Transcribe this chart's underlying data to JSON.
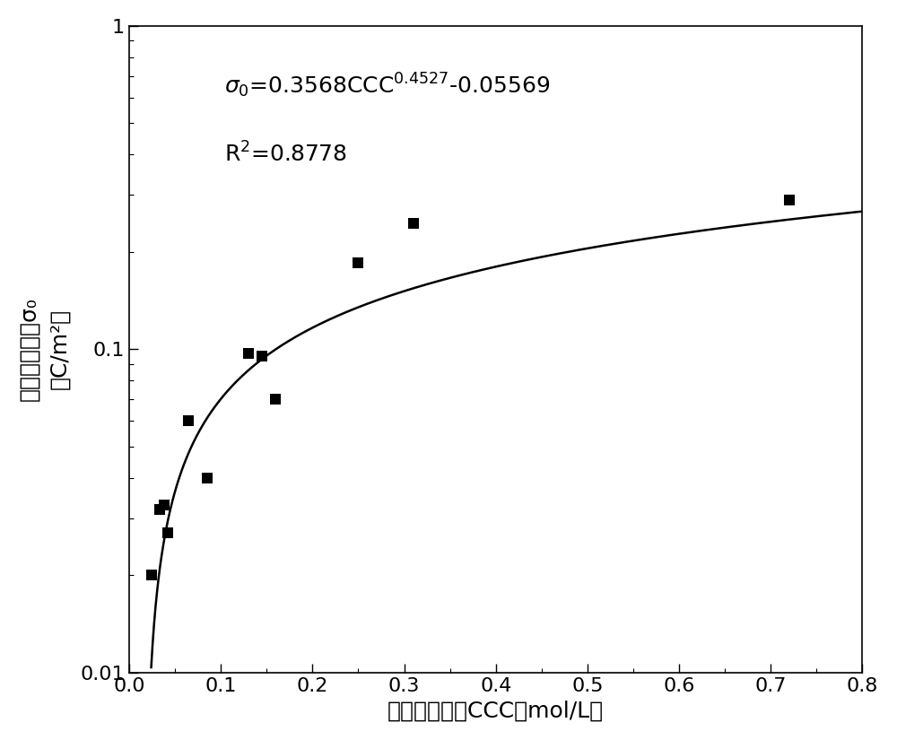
{
  "scatter_x": [
    0.025,
    0.033,
    0.038,
    0.042,
    0.065,
    0.085,
    0.13,
    0.145,
    0.16,
    0.25,
    0.31,
    0.72
  ],
  "scatter_y": [
    0.02,
    0.032,
    0.033,
    0.027,
    0.06,
    0.04,
    0.097,
    0.095,
    0.07,
    0.185,
    0.245,
    0.29
  ],
  "fit_a": 0.3568,
  "fit_b": 0.4527,
  "fit_c": -0.05569,
  "r2": 0.8778,
  "xlabel": "临界凝聚浓度CCC（mol/L）",
  "ylabel_chinese": "表面电荷密度σ₀",
  "ylabel_unit": "（C/m²）",
  "xlim": [
    0,
    0.8
  ],
  "xticks": [
    0.0,
    0.1,
    0.2,
    0.3,
    0.4,
    0.5,
    0.6,
    0.7,
    0.8
  ],
  "ylim_log": [
    0.01,
    1.0
  ],
  "curve_color": "#000000",
  "scatter_color": "#000000",
  "background_color": "#ffffff",
  "label_fontsize": 18,
  "tick_fontsize": 16,
  "annot_fontsize": 18,
  "marker_size": 80
}
